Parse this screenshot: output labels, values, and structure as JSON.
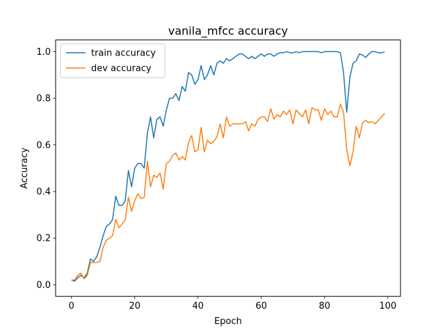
{
  "chart_data": {
    "type": "line",
    "title": "vanila_mfcc accuracy",
    "xlabel": "Epoch",
    "ylabel": "Accuracy",
    "xlim": [
      -5,
      104
    ],
    "ylim": [
      -0.05,
      1.05
    ],
    "x_ticks": [
      0,
      20,
      40,
      60,
      80,
      100
    ],
    "y_ticks": [
      0.0,
      0.2,
      0.4,
      0.6,
      0.8,
      1.0
    ],
    "x_tick_labels": [
      "0",
      "20",
      "40",
      "60",
      "80",
      "100"
    ],
    "y_tick_labels": [
      "0.0",
      "0.2",
      "0.4",
      "0.6",
      "0.8",
      "1.0"
    ],
    "grid": false,
    "legend_position": "top-left",
    "x": [
      0,
      1,
      2,
      3,
      4,
      5,
      6,
      7,
      8,
      9,
      10,
      11,
      12,
      13,
      14,
      15,
      16,
      17,
      18,
      19,
      20,
      21,
      22,
      23,
      24,
      25,
      26,
      27,
      28,
      29,
      30,
      31,
      32,
      33,
      34,
      35,
      36,
      37,
      38,
      39,
      40,
      41,
      42,
      43,
      44,
      45,
      46,
      47,
      48,
      49,
      50,
      51,
      52,
      53,
      54,
      55,
      56,
      57,
      58,
      59,
      60,
      61,
      62,
      63,
      64,
      65,
      66,
      67,
      68,
      69,
      70,
      71,
      72,
      73,
      74,
      75,
      76,
      77,
      78,
      79,
      80,
      81,
      82,
      83,
      84,
      85,
      86,
      87,
      88,
      89,
      90,
      91,
      92,
      93,
      94,
      95,
      96,
      97,
      98,
      99
    ],
    "series": [
      {
        "name": "train accuracy",
        "color": "#1f77b4",
        "values": [
          0.02,
          0.015,
          0.03,
          0.04,
          0.03,
          0.05,
          0.11,
          0.1,
          0.12,
          0.16,
          0.21,
          0.25,
          0.26,
          0.28,
          0.38,
          0.34,
          0.34,
          0.36,
          0.49,
          0.42,
          0.5,
          0.52,
          0.52,
          0.5,
          0.65,
          0.72,
          0.63,
          0.71,
          0.72,
          0.68,
          0.75,
          0.8,
          0.8,
          0.82,
          0.79,
          0.85,
          0.83,
          0.91,
          0.9,
          0.86,
          0.88,
          0.94,
          0.88,
          0.9,
          0.94,
          0.9,
          0.95,
          0.96,
          0.95,
          0.97,
          0.96,
          0.97,
          0.98,
          0.99,
          0.99,
          0.98,
          0.97,
          0.98,
          0.97,
          0.98,
          0.99,
          0.98,
          0.99,
          0.99,
          0.98,
          0.99,
          0.995,
          0.995,
          1.0,
          0.995,
          0.995,
          1.0,
          0.995,
          1.0,
          1.0,
          1.0,
          1.0,
          1.0,
          1.0,
          0.995,
          1.0,
          1.0,
          1.0,
          1.0,
          1.0,
          0.995,
          0.91,
          0.74,
          0.89,
          0.95,
          0.96,
          0.99,
          0.985,
          0.975,
          0.99,
          1.0,
          1.0,
          0.995,
          0.995,
          0.998
        ]
      },
      {
        "name": "dev accuracy",
        "color": "#ff7f0e",
        "values": [
          0.02,
          0.02,
          0.04,
          0.05,
          0.025,
          0.04,
          0.095,
          0.095,
          0.095,
          0.1,
          0.16,
          0.19,
          0.2,
          0.21,
          0.28,
          0.245,
          0.26,
          0.28,
          0.375,
          0.315,
          0.36,
          0.39,
          0.37,
          0.375,
          0.53,
          0.42,
          0.47,
          0.46,
          0.48,
          0.41,
          0.52,
          0.53,
          0.555,
          0.565,
          0.535,
          0.55,
          0.535,
          0.61,
          0.64,
          0.57,
          0.58,
          0.675,
          0.57,
          0.62,
          0.605,
          0.615,
          0.635,
          0.69,
          0.63,
          0.72,
          0.68,
          0.69,
          0.69,
          0.69,
          0.69,
          0.7,
          0.66,
          0.69,
          0.68,
          0.71,
          0.72,
          0.72,
          0.7,
          0.755,
          0.71,
          0.73,
          0.72,
          0.745,
          0.73,
          0.75,
          0.69,
          0.75,
          0.735,
          0.72,
          0.75,
          0.69,
          0.76,
          0.75,
          0.75,
          0.705,
          0.755,
          0.73,
          0.745,
          0.72,
          0.72,
          0.775,
          0.74,
          0.58,
          0.51,
          0.57,
          0.68,
          0.63,
          0.695,
          0.705,
          0.695,
          0.7,
          0.69,
          0.705,
          0.72,
          0.735
        ]
      }
    ]
  }
}
